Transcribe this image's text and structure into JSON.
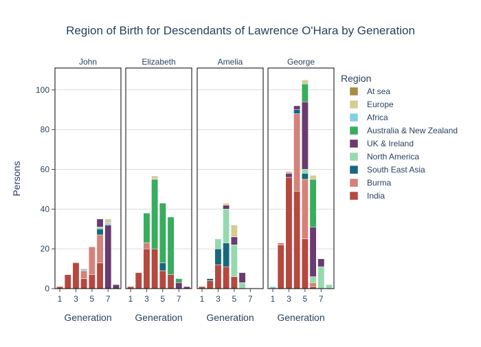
{
  "chart_data": {
    "type": "bar",
    "barmode": "stack",
    "title": "Region of Birth for Descendants of Lawrence O'Hara by Generation",
    "ylabel": "Persons",
    "xlabel": "Generation",
    "ylim": [
      0,
      111
    ],
    "yticks": [
      0,
      20,
      40,
      60,
      80,
      100
    ],
    "xticks": [
      1,
      3,
      5,
      7
    ],
    "xlim": [
      0.4,
      8.6
    ],
    "grid": true,
    "legend": {
      "title": "Region",
      "placement": "right"
    },
    "regions": [
      {
        "name": "India",
        "color": "#B5483F"
      },
      {
        "name": "Burma",
        "color": "#D4827A"
      },
      {
        "name": "South East Asia",
        "color": "#17687F"
      },
      {
        "name": "North America",
        "color": "#97D9AF"
      },
      {
        "name": "UK & Ireland",
        "color": "#6A3B6F"
      },
      {
        "name": "Australia & New Zealand",
        "color": "#37AD5D"
      },
      {
        "name": "Africa",
        "color": "#84CFE3"
      },
      {
        "name": "Europe",
        "color": "#D3CC96"
      },
      {
        "name": "At sea",
        "color": "#A58E42"
      }
    ],
    "legend_order": [
      "At sea",
      "Europe",
      "Africa",
      "Australia & New Zealand",
      "UK & Ireland",
      "North America",
      "South East Asia",
      "Burma",
      "India"
    ],
    "panels": [
      {
        "name": "John",
        "bars": [
          {
            "generation": 1,
            "India": 1
          },
          {
            "generation": 2,
            "India": 7
          },
          {
            "generation": 3,
            "India": 13
          },
          {
            "generation": 4,
            "India": 5,
            "Burma": 4,
            "Africa": 1
          },
          {
            "generation": 5,
            "India": 7,
            "Burma": 14
          },
          {
            "generation": 6,
            "India": 13,
            "Burma": 14,
            "South East Asia": 3,
            "North America": 1,
            "UK & Ireland": 4
          },
          {
            "generation": 7,
            "UK & Ireland": 32,
            "Africa": 1,
            "Europe": 2
          },
          {
            "generation": 8,
            "UK & Ireland": 2
          }
        ]
      },
      {
        "name": "Elizabeth",
        "bars": [
          {
            "generation": 1,
            "India": 1
          },
          {
            "generation": 2,
            "India": 8
          },
          {
            "generation": 3,
            "India": 20,
            "Burma": 3,
            "Australia & New Zealand": 15
          },
          {
            "generation": 4,
            "India": 20,
            "Australia & New Zealand": 35,
            "Europe": 1,
            "At sea": 0.5
          },
          {
            "generation": 5,
            "India": 9,
            "South East Asia": 4,
            "Australia & New Zealand": 30
          },
          {
            "generation": 6,
            "India": 7,
            "Australia & New Zealand": 29
          },
          {
            "generation": 7,
            "UK & Ireland": 3,
            "Australia & New Zealand": 2
          },
          {
            "generation": 8,
            "UK & Ireland": 1
          }
        ]
      },
      {
        "name": "Amelia",
        "bars": [
          {
            "generation": 1,
            "India": 1
          },
          {
            "generation": 2,
            "India": 4,
            "South East Asia": 1
          },
          {
            "generation": 3,
            "India": 12,
            "South East Asia": 8,
            "North America": 5
          },
          {
            "generation": 4,
            "India": 11,
            "South East Asia": 12,
            "North America": 17,
            "UK & Ireland": 2,
            "Europe": 1
          },
          {
            "generation": 5,
            "India": 6,
            "North America": 16,
            "UK & Ireland": 4,
            "Europe": 6
          },
          {
            "generation": 6,
            "UK & Ireland": 5,
            "North America": 3
          }
        ]
      },
      {
        "name": "George",
        "bars": [
          {
            "generation": 1,
            "Africa": 1
          },
          {
            "generation": 2,
            "India": 22,
            "Burma": 1
          },
          {
            "generation": 3,
            "India": 56,
            "UK & Ireland": 2,
            "Europe": 1
          },
          {
            "generation": 4,
            "India": 49,
            "Burma": 39,
            "South East Asia": 2,
            "UK & Ireland": 2
          },
          {
            "generation": 5,
            "India": 25,
            "Burma": 30,
            "South East Asia": 3,
            "North America": 2,
            "UK & Ireland": 34,
            "Australia & New Zealand": 9,
            "Europe": 2
          },
          {
            "generation": 6,
            "India": 1,
            "Burma": 2,
            "North America": 3,
            "UK & Ireland": 25,
            "Australia & New Zealand": 24,
            "Europe": 2
          },
          {
            "generation": 7,
            "North America": 11,
            "UK & Ireland": 4
          },
          {
            "generation": 8,
            "North America": 2
          }
        ]
      }
    ]
  }
}
